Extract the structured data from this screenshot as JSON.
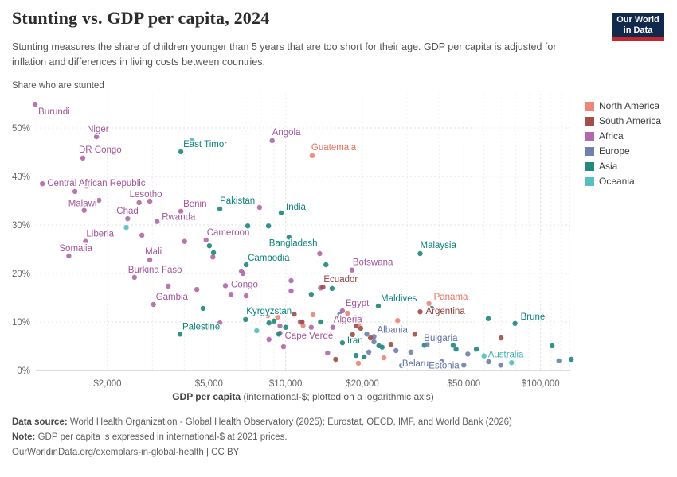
{
  "header": {
    "title": "Stunting vs. GDP per capita, 2024",
    "subtitle": "Stunting measures the share of children younger than 5 years that are too short for their age. GDP per capita is adjusted for inflation and differences in living costs between countries.",
    "logo_line1": "Our World",
    "logo_line2": "in Data",
    "logo_bg": "#12294E",
    "logo_bar": "#C4272F"
  },
  "footer": {
    "datasource_label": "Data source:",
    "datasource_text": " World Health Organization - Global Health Observatory (2025); Eurostat, OECD, IMF, and World Bank (2026)",
    "note_label": "Note:",
    "note_text": " GDP per capita is expressed in international-$ at 2021 prices.",
    "link": "OurWorldinData.org/exemplars-in-global-health | CC BY"
  },
  "chart_data": {
    "type": "scatter",
    "title": "Stunting vs. GDP per capita, 2024",
    "y_axis_title": "Share who are stunted",
    "xlabel_bold": "GDP per capita",
    "xlabel_rest": " (international-$; plotted on a logarithmic axis)",
    "x_scale": "log",
    "xlim": [
      1047,
      139000
    ],
    "ylim": [
      0,
      57
    ],
    "grid": true,
    "legend_position": "right",
    "x_ticks": [
      2000,
      5000,
      10000,
      20000,
      50000,
      100000
    ],
    "x_tick_labels": [
      "$2,000",
      "$5,000",
      "$10,000",
      "$20,000",
      "$50,000",
      "$100,000"
    ],
    "x_minor_ticks": [
      3000,
      4000,
      6000,
      7000,
      8000,
      9000,
      30000,
      40000,
      60000,
      70000,
      80000,
      90000,
      110000,
      120000,
      130000
    ],
    "y_ticks": [
      0,
      10,
      20,
      30,
      40,
      50
    ],
    "y_tick_labels": [
      "0%",
      "10%",
      "20%",
      "30%",
      "40%",
      "50%"
    ],
    "legend": [
      {
        "label": "North America",
        "color": "#ED8678"
      },
      {
        "label": "South America",
        "color": "#A14F48"
      },
      {
        "label": "Africa",
        "color": "#B369A9"
      },
      {
        "label": "Europe",
        "color": "#7081AD"
      },
      {
        "label": "Asia",
        "color": "#23897F"
      },
      {
        "label": "Oceania",
        "color": "#58BEC0"
      }
    ],
    "series": [
      {
        "name": "Africa",
        "color": "#B369A9",
        "label_color": "#A2559C",
        "points": [
          [
            1040,
            54.9,
            "Burundi",
            4,
            13
          ],
          [
            1810,
            48.2,
            "Niger",
            -12,
            -6
          ],
          [
            1600,
            43.8,
            "DR Congo",
            -5,
            -7
          ],
          [
            1110,
            38.5,
            "Central African Republic",
            6,
            3
          ],
          [
            8850,
            47.4,
            "Angola",
            0,
            -7
          ],
          [
            1620,
            33.0,
            "Malawi",
            -20,
            -5
          ],
          [
            2660,
            34.6,
            "Lesotho",
            -12,
            -7
          ],
          [
            2400,
            31.3,
            "Chad",
            -14,
            -6
          ],
          [
            3880,
            32.8,
            "Benin",
            3,
            -6
          ],
          [
            3130,
            30.7,
            "Rwanda",
            6,
            -2
          ],
          [
            1640,
            26.6,
            "Liberia",
            1,
            -6
          ],
          [
            1410,
            23.6,
            "Somalia",
            -12,
            -6
          ],
          [
            4870,
            26.9,
            "Cameroon",
            1,
            -6
          ],
          [
            2930,
            22.8,
            "Mali",
            -6,
            -7
          ],
          [
            2550,
            19.2,
            "Burkina Faso",
            -8,
            -6
          ],
          [
            18200,
            20.7,
            "Botswana",
            1,
            -6
          ],
          [
            5800,
            17.5,
            "Congo",
            7,
            2
          ],
          [
            3030,
            13.6,
            "Gambia",
            3,
            -6
          ],
          [
            9500,
            7.7,
            "Cape Verde",
            6,
            7
          ],
          [
            15300,
            8.9,
            "Algeria",
            1,
            -6
          ],
          [
            16700,
            12.3,
            "Egypt",
            4,
            -6
          ],
          [
            1490,
            36.9
          ],
          [
            1650,
            38.0
          ],
          [
            1850,
            35.1
          ],
          [
            2930,
            34.9
          ],
          [
            2730,
            27.9
          ],
          [
            4010,
            26.6
          ],
          [
            5180,
            23.4
          ],
          [
            3460,
            17.4
          ],
          [
            4480,
            16.7
          ],
          [
            5520,
            9.8
          ],
          [
            7900,
            33.6
          ],
          [
            6700,
            20.5
          ],
          [
            6800,
            20.0
          ],
          [
            10500,
            18.5
          ],
          [
            10500,
            16.4
          ],
          [
            6100,
            15.7
          ],
          [
            7000,
            15.4
          ],
          [
            12600,
            8.9
          ],
          [
            9500,
            9.2
          ],
          [
            11400,
            10.0
          ],
          [
            9800,
            4.9
          ],
          [
            14600,
            3.6
          ],
          [
            13700,
            17.0
          ],
          [
            8600,
            6.4
          ],
          [
            13600,
            24.1
          ]
        ]
      },
      {
        "name": "Asia",
        "color": "#23897F",
        "label_color": "#0B837B",
        "points": [
          [
            3880,
            45.1,
            "East Timor",
            3,
            -6
          ],
          [
            5520,
            33.3,
            "Pakistan",
            0,
            -7
          ],
          [
            9600,
            32.5,
            "India",
            6,
            -4
          ],
          [
            10300,
            27.5,
            "Bangladesh",
            -25,
            11
          ],
          [
            7000,
            21.8,
            "Cambodia",
            2,
            -5
          ],
          [
            33700,
            24.1,
            "Malaysia",
            0,
            -7
          ],
          [
            6960,
            10.5,
            "Kyrgyzstan",
            1,
            -7
          ],
          [
            23100,
            13.3,
            "Maldives",
            3,
            -6
          ],
          [
            3850,
            7.5,
            "Palestine",
            3,
            -6
          ],
          [
            16700,
            5.7,
            "Iran",
            6,
            1
          ],
          [
            79400,
            9.7,
            "Brunei",
            7,
            -5
          ],
          [
            5020,
            25.7
          ],
          [
            5210,
            24.3
          ],
          [
            4740,
            12.8
          ],
          [
            7100,
            29.8
          ],
          [
            8560,
            29.8
          ],
          [
            14400,
            21.8
          ],
          [
            12600,
            15.7
          ],
          [
            13700,
            10.0
          ],
          [
            9000,
            10.2
          ],
          [
            8600,
            9.8
          ],
          [
            10000,
            8.9
          ],
          [
            15200,
            16.9
          ],
          [
            18900,
            3.1
          ],
          [
            20300,
            2.8
          ],
          [
            23200,
            5.1
          ],
          [
            23900,
            4.8
          ],
          [
            37400,
            12.8
          ],
          [
            62400,
            10.7
          ],
          [
            35000,
            5.2
          ],
          [
            111000,
            5.1
          ],
          [
            9400,
            7.5
          ],
          [
            45400,
            5.2
          ],
          [
            46600,
            4.4
          ],
          [
            56000,
            4.4
          ],
          [
            132000,
            2.3
          ]
        ]
      },
      {
        "name": "Europe",
        "color": "#7081AD",
        "label_color": "#5C6FA6",
        "points": [
          [
            22200,
            7.0,
            "Albania",
            4,
            -5
          ],
          [
            35900,
            5.4,
            "Bulgaria",
            -4,
            -4
          ],
          [
            31000,
            3.8,
            "Belarus",
            -11,
            18
          ],
          [
            50000,
            1.1,
            "Estonia",
            -44,
            4
          ],
          [
            16500,
            10.8
          ],
          [
            19000,
            10.2
          ],
          [
            21200,
            3.8
          ],
          [
            22200,
            5.9
          ],
          [
            16300,
            11.6
          ],
          [
            20800,
            7.5
          ],
          [
            27100,
            4.1
          ],
          [
            28500,
            1.0
          ],
          [
            41000,
            0.7
          ],
          [
            37200,
            1.5
          ],
          [
            44300,
            0.7
          ],
          [
            46600,
            1.0
          ],
          [
            51800,
            3.4
          ],
          [
            62600,
            1.8
          ],
          [
            69800,
            1.1
          ],
          [
            118000,
            2.0
          ],
          [
            41000,
            1.8
          ]
        ]
      },
      {
        "name": "North America",
        "color": "#ED8678",
        "label_color": "#E8705B",
        "points": [
          [
            12700,
            44.3,
            "Guatemala",
            -1,
            -7
          ],
          [
            36500,
            13.8,
            "Panama",
            6,
            -5
          ],
          [
            2890,
            21.0
          ],
          [
            12800,
            11.5
          ],
          [
            11700,
            9.3
          ],
          [
            9300,
            11.0
          ],
          [
            8500,
            11.3
          ],
          [
            17500,
            11.8
          ],
          [
            19300,
            1.5
          ],
          [
            27500,
            10.3
          ],
          [
            24300,
            2.6
          ],
          [
            19400,
            9.7
          ]
        ]
      },
      {
        "name": "South America",
        "color": "#A14F48",
        "label_color": "#90413C",
        "points": [
          [
            14000,
            17.2,
            "Ecuador",
            1,
            -6
          ],
          [
            33700,
            12.1,
            "Argentina",
            7,
            3
          ],
          [
            11600,
            10.0
          ],
          [
            10800,
            11.6
          ],
          [
            18300,
            7.4
          ],
          [
            15700,
            2.3
          ],
          [
            19700,
            8.7
          ],
          [
            21500,
            6.7
          ],
          [
            18900,
            9.2
          ],
          [
            32100,
            7.5
          ],
          [
            25900,
            5.4
          ],
          [
            70000,
            6.7
          ]
        ]
      },
      {
        "name": "Oceania",
        "color": "#58BEC0",
        "label_color": "#41AFB5",
        "points": [
          [
            60000,
            3.0,
            "Australia",
            5,
            2
          ],
          [
            4290,
            47.5
          ],
          [
            2370,
            29.5
          ],
          [
            7700,
            8.2
          ],
          [
            77000,
            1.6
          ]
        ]
      }
    ]
  }
}
